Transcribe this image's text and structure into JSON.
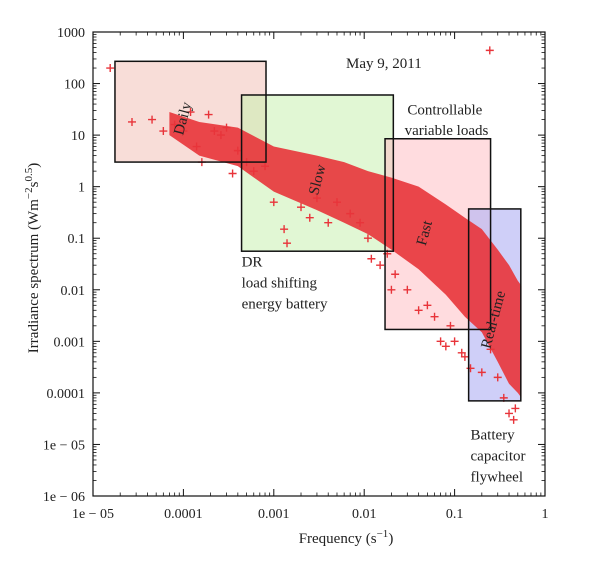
{
  "chart_data": {
    "type": "scatter",
    "title": "",
    "xlabel": "Frequency",
    "xlabel_unit": "s",
    "xlabel_exp": "−1",
    "ylabel": "Irradiance spectrum",
    "ylabel_unit": "Wm",
    "ylabel_exp1": "−2",
    "ylabel_mid": "s",
    "ylabel_exp2": "0.5",
    "xscale": "log",
    "yscale": "log",
    "xlim": [
      1e-05,
      1
    ],
    "ylim": [
      1e-06,
      1000
    ],
    "grid": false,
    "x_ticks": [
      {
        "value": 1e-05,
        "label": "1e − 05"
      },
      {
        "value": 0.0001,
        "label": "0.0001"
      },
      {
        "value": 0.001,
        "label": "0.001"
      },
      {
        "value": 0.01,
        "label": "0.01"
      },
      {
        "value": 0.1,
        "label": "0.1"
      },
      {
        "value": 1,
        "label": "1"
      }
    ],
    "y_ticks": [
      {
        "value": 1000,
        "label": "1000"
      },
      {
        "value": 100,
        "label": "100"
      },
      {
        "value": 10,
        "label": "10"
      },
      {
        "value": 1,
        "label": "1"
      },
      {
        "value": 0.1,
        "label": "0.1"
      },
      {
        "value": 0.01,
        "label": "0.01"
      },
      {
        "value": 0.001,
        "label": "0.001"
      },
      {
        "value": 0.0001,
        "label": "0.0001"
      },
      {
        "value": 1e-05,
        "label": "1e − 05"
      },
      {
        "value": 1e-06,
        "label": "1e − 06"
      }
    ],
    "series": [
      {
        "color": "#e8343a",
        "marker": "+",
        "points": [
          [
            1.55e-05,
            200
          ],
          [
            2.7e-05,
            18
          ],
          [
            4.5e-05,
            20
          ],
          [
            6e-05,
            12
          ],
          [
            8e-05,
            16
          ],
          [
            0.0001,
            12
          ],
          [
            0.00012,
            28
          ],
          [
            0.00014,
            6
          ],
          [
            0.00016,
            3
          ],
          [
            0.00019,
            25
          ],
          [
            0.00022,
            12
          ],
          [
            0.00026,
            10
          ],
          [
            0.0003,
            14
          ],
          [
            0.00035,
            1.8
          ],
          [
            0.0004,
            5
          ],
          [
            0.0005,
            3
          ],
          [
            0.0006,
            2
          ],
          [
            0.0008,
            2.5
          ],
          [
            0.001,
            0.5
          ],
          [
            0.0013,
            0.15
          ],
          [
            0.0014,
            0.08
          ],
          [
            0.002,
            0.4
          ],
          [
            0.0025,
            0.25
          ],
          [
            0.003,
            0.6
          ],
          [
            0.004,
            0.2
          ],
          [
            0.005,
            0.5
          ],
          [
            0.007,
            0.3
          ],
          [
            0.009,
            0.2
          ],
          [
            0.011,
            0.1
          ],
          [
            0.012,
            0.04
          ],
          [
            0.015,
            0.03
          ],
          [
            0.018,
            0.05
          ],
          [
            0.02,
            0.01
          ],
          [
            0.022,
            0.02
          ],
          [
            0.03,
            0.01
          ],
          [
            0.04,
            0.004
          ],
          [
            0.05,
            0.005
          ],
          [
            0.06,
            0.003
          ],
          [
            0.07,
            0.001
          ],
          [
            0.08,
            0.0008
          ],
          [
            0.09,
            0.002
          ],
          [
            0.1,
            0.001
          ],
          [
            0.12,
            0.0006
          ],
          [
            0.13,
            0.0005
          ],
          [
            0.15,
            0.0003
          ],
          [
            0.2,
            0.00025
          ],
          [
            0.25,
            0.0007
          ],
          [
            0.3,
            0.0002
          ],
          [
            0.35,
            8e-05
          ],
          [
            0.4,
            4e-05
          ],
          [
            0.45,
            3e-05
          ],
          [
            0.47,
            5e-05
          ],
          [
            0.245,
            440
          ]
        ]
      }
    ],
    "bands": [
      {
        "name": "Daily",
        "color": "#e8343a",
        "edges": [
          [
            7e-05,
            10,
            28
          ],
          [
            0.00015,
            4,
            18
          ],
          [
            0.0004,
            2.5,
            14
          ],
          [
            0.001,
            0.8,
            6
          ],
          [
            0.003,
            0.35,
            4
          ],
          [
            0.006,
            0.2,
            3
          ],
          [
            0.011,
            0.12,
            2
          ],
          [
            0.02,
            0.06,
            1.5
          ],
          [
            0.04,
            0.025,
            1
          ],
          [
            0.08,
            0.008,
            0.45
          ],
          [
            0.13,
            0.003,
            0.25
          ],
          [
            0.2,
            0.0015,
            0.15
          ],
          [
            0.3,
            0.0004,
            0.06
          ],
          [
            0.4,
            0.00015,
            0.03
          ],
          [
            0.5,
            0.0001,
            0.015
          ],
          [
            0.55,
            8e-05,
            0.012
          ]
        ]
      }
    ],
    "regions": [
      {
        "label": "Daily",
        "x": [
          1.75e-05,
          0.00082
        ],
        "y": [
          3,
          270
        ],
        "fill": "#f3c1b8",
        "opacity": 0.55
      },
      {
        "label": "Slow",
        "x": [
          0.00044,
          0.021
        ],
        "y": [
          0.056,
          60
        ],
        "fill": "#c9f0b0",
        "opacity": 0.55
      },
      {
        "label": "Fast",
        "x": [
          0.017,
          0.25
        ],
        "y": [
          0.0017,
          8.5
        ],
        "fill": "#ffbfc4",
        "opacity": 0.55
      },
      {
        "label": "Real-time",
        "x": [
          0.143,
          0.54
        ],
        "y": [
          7e-05,
          0.37
        ],
        "fill": "#b5b5f5",
        "opacity": 0.65
      }
    ],
    "annotations": [
      {
        "text": "May 9, 2011",
        "x": 0.0063,
        "y": 200,
        "anchor": "start"
      },
      {
        "text": "Controllable",
        "x": 0.03,
        "y": 25,
        "anchor": "start"
      },
      {
        "text": "variable loads",
        "x": 0.028,
        "y": 10,
        "anchor": "start"
      },
      {
        "text": "DR",
        "x": 0.00044,
        "y": 0.028,
        "anchor": "start"
      },
      {
        "text": "load shifting",
        "x": 0.00044,
        "y": 0.011,
        "anchor": "start"
      },
      {
        "text": "energy battery",
        "x": 0.00044,
        "y": 0.0043,
        "anchor": "start"
      },
      {
        "text": "Battery",
        "x": 0.15,
        "y": 1.25e-05,
        "anchor": "start"
      },
      {
        "text": "capacitor",
        "x": 0.15,
        "y": 4.9e-06,
        "anchor": "start"
      },
      {
        "text": "flywheel",
        "x": 0.15,
        "y": 1.9e-06,
        "anchor": "start"
      }
    ],
    "rotated_labels": [
      {
        "text": "Daily",
        "x": 0.00011,
        "y": 20
      },
      {
        "text": "Slow",
        "x": 0.0034,
        "y": 1.3
      },
      {
        "text": "Fast",
        "x": 0.052,
        "y": 0.12
      },
      {
        "text": "Real-time",
        "x": 0.3,
        "y": 0.0025
      }
    ]
  }
}
